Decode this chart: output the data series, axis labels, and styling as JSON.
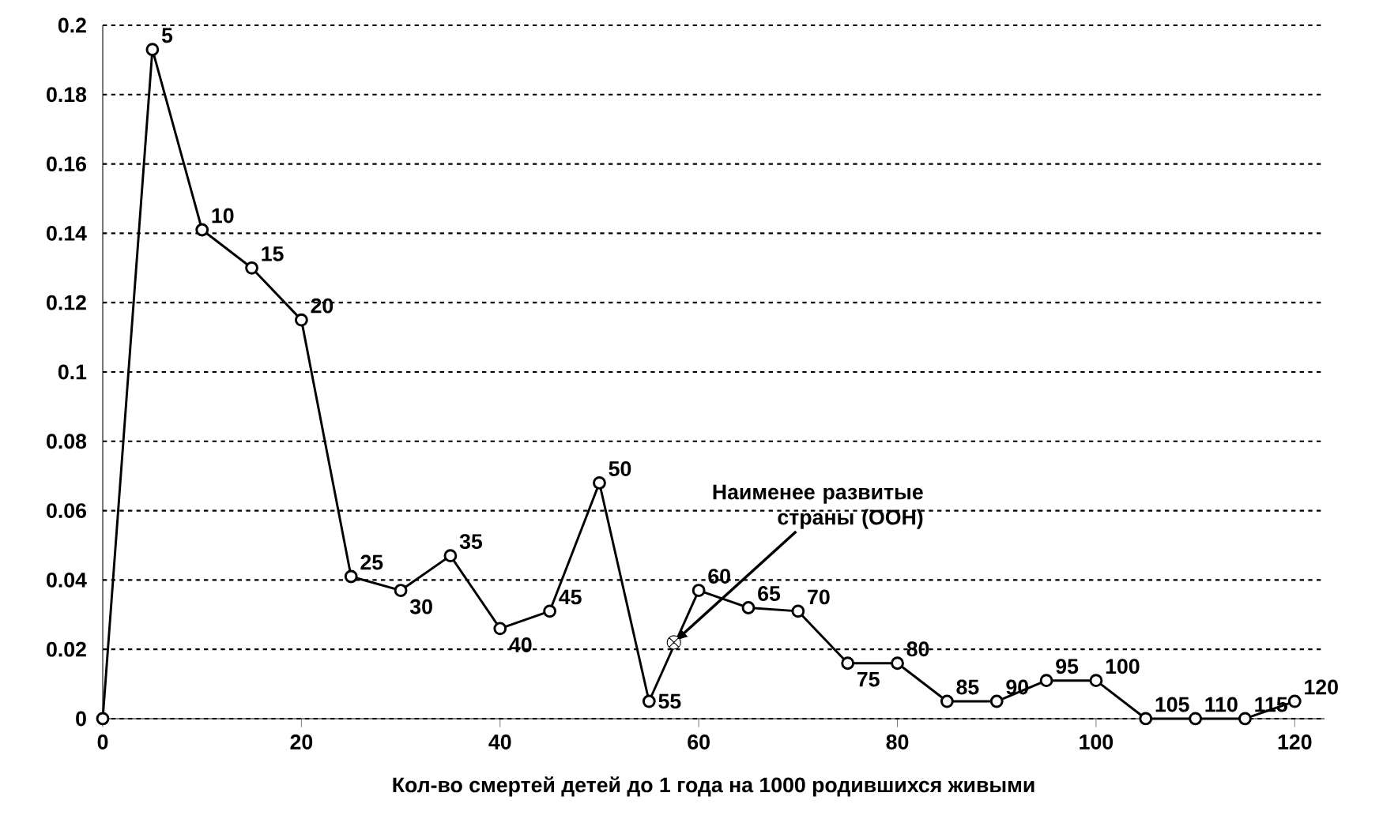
{
  "chart_data": {
    "type": "line",
    "xlabel": "Кол-во смертей детей до 1 года на 1000 родившихся живыми",
    "xlim": [
      0,
      123
    ],
    "xticks": [
      0,
      20,
      40,
      60,
      80,
      100,
      120
    ],
    "ylim": [
      0,
      0.2
    ],
    "yticks": [
      0,
      0.02,
      0.04,
      0.06,
      0.08,
      0.1,
      0.12,
      0.14,
      0.16,
      0.18,
      0.2
    ],
    "grid": "y",
    "line_style": "solid",
    "series": [
      {
        "type": "line",
        "color": "#000000",
        "marker": "circle",
        "x": [
          0,
          5,
          10,
          15,
          20,
          25,
          30,
          35,
          40,
          45,
          50,
          55,
          60,
          65,
          70,
          75,
          80,
          85,
          90,
          95,
          100,
          105,
          110,
          115,
          120
        ],
        "values": [
          0,
          0.193,
          0.141,
          0.13,
          0.115,
          0.041,
          0.037,
          0.047,
          0.026,
          0.031,
          0.068,
          0.005,
          0.037,
          0.032,
          0.031,
          0.016,
          0.016,
          0.005,
          0.005,
          0.011,
          0.011,
          0,
          0,
          0,
          0.005
        ]
      },
      {
        "type": "scatter",
        "color": "#000000",
        "marker": "cross",
        "x": [
          57.5
        ],
        "values": [
          0.022
        ]
      }
    ],
    "annotations": [
      {
        "text": "5",
        "x": 5,
        "y": 0.193
      },
      {
        "text": "10",
        "x": 10,
        "y": 0.141
      },
      {
        "text": "15",
        "x": 15,
        "y": 0.13
      },
      {
        "text": "20",
        "x": 20,
        "y": 0.115
      },
      {
        "text": "25",
        "x": 25,
        "y": 0.041
      },
      {
        "text": "30",
        "x": 30,
        "y": 0.037
      },
      {
        "text": "35",
        "x": 35,
        "y": 0.047
      },
      {
        "text": "40",
        "x": 40,
        "y": 0.026
      },
      {
        "text": "45",
        "x": 45,
        "y": 0.031
      },
      {
        "text": "50",
        "x": 50,
        "y": 0.068
      },
      {
        "text": "55",
        "x": 55,
        "y": 0.005
      },
      {
        "text": "60",
        "x": 60,
        "y": 0.037
      },
      {
        "text": "65",
        "x": 65,
        "y": 0.032
      },
      {
        "text": "70",
        "x": 70,
        "y": 0.031
      },
      {
        "text": "75",
        "x": 75,
        "y": 0.016
      },
      {
        "text": "80",
        "x": 80,
        "y": 0.016
      },
      {
        "text": "85",
        "x": 85,
        "y": 0.005
      },
      {
        "text": "90",
        "x": 90,
        "y": 0.005
      },
      {
        "text": "95",
        "x": 95,
        "y": 0.011
      },
      {
        "text": "100",
        "x": 100,
        "y": 0.011
      },
      {
        "text": "105",
        "x": 105,
        "y": 0
      },
      {
        "text": "110",
        "x": 110,
        "y": 0
      },
      {
        "text": "115",
        "x": 115,
        "y": 0
      },
      {
        "text": "120",
        "x": 120,
        "y": 0.005
      },
      {
        "text": "Наименее развитые страны (ООН)",
        "x": 57.5,
        "y": 0.022
      }
    ]
  }
}
